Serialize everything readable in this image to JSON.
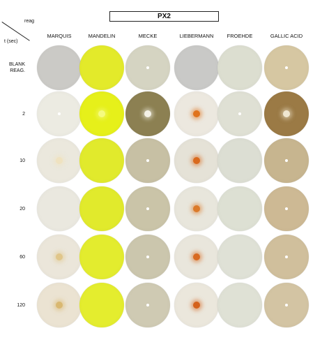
{
  "header": {
    "title": "PX2"
  },
  "corner": {
    "reag_label": "reag",
    "time_label": "t (sec)"
  },
  "columns": [
    "MARQUIS",
    "MANDELIN",
    "MECKE",
    "LIEBERMANN",
    "FROEHDE",
    "GALLIC ACID"
  ],
  "rows": [
    {
      "label_lines": [
        "BLANK",
        "REAG."
      ]
    },
    {
      "label_lines": [
        "2"
      ]
    },
    {
      "label_lines": [
        "10"
      ]
    },
    {
      "label_lines": [
        "20"
      ]
    },
    {
      "label_lines": [
        "60"
      ]
    },
    {
      "label_lines": [
        "120"
      ]
    }
  ],
  "well_colors": [
    [
      "#cbcac6",
      "#e3ea2a",
      "#d5d4c2",
      "#c9c9c7",
      "#dcded0",
      "#d6c7a2"
    ],
    [
      "#ecebe2",
      "#e6f01a",
      "#8c8052",
      "#ece8df",
      "#dfe0d4",
      "#9b7a45"
    ],
    [
      "#ebe8dd",
      "#e1ea2c",
      "#c7c0a4",
      "#e5e2d7",
      "#dcded3",
      "#c7b58f"
    ],
    [
      "#eae8df",
      "#e1ea2c",
      "#cac4a8",
      "#e8e6dc",
      "#dde0d3",
      "#cdb994"
    ],
    [
      "#ebe6da",
      "#e3ec2e",
      "#cbc6ad",
      "#e9e6dc",
      "#dfe1d6",
      "#d0bf9c"
    ],
    [
      "#ebe3d2",
      "#e4ed2e",
      "#cfcab3",
      "#ebe7dc",
      "#dfe1d5",
      "#d3c4a3"
    ]
  ],
  "spot_colors": [
    [
      null,
      null,
      "#ffffff",
      null,
      null,
      "#ffffff"
    ],
    [
      "#ffffff",
      "#f5fb80",
      "#f4f1e6",
      "#e0731d",
      "#ffffff",
      "#efe6d0"
    ],
    [
      "#efe2c0",
      null,
      "#ffffff",
      "#d96a1e",
      null,
      "#ffffff"
    ],
    [
      null,
      null,
      "#ffffff",
      "#db7a2a",
      null,
      "#ffffff"
    ],
    [
      "#e0c68a",
      null,
      "#ffffff",
      "#d86a22",
      null,
      "#ffffff"
    ],
    [
      "#d9b871",
      null,
      "#ffffff",
      "#d4611c",
      null,
      "#ffffff"
    ]
  ]
}
